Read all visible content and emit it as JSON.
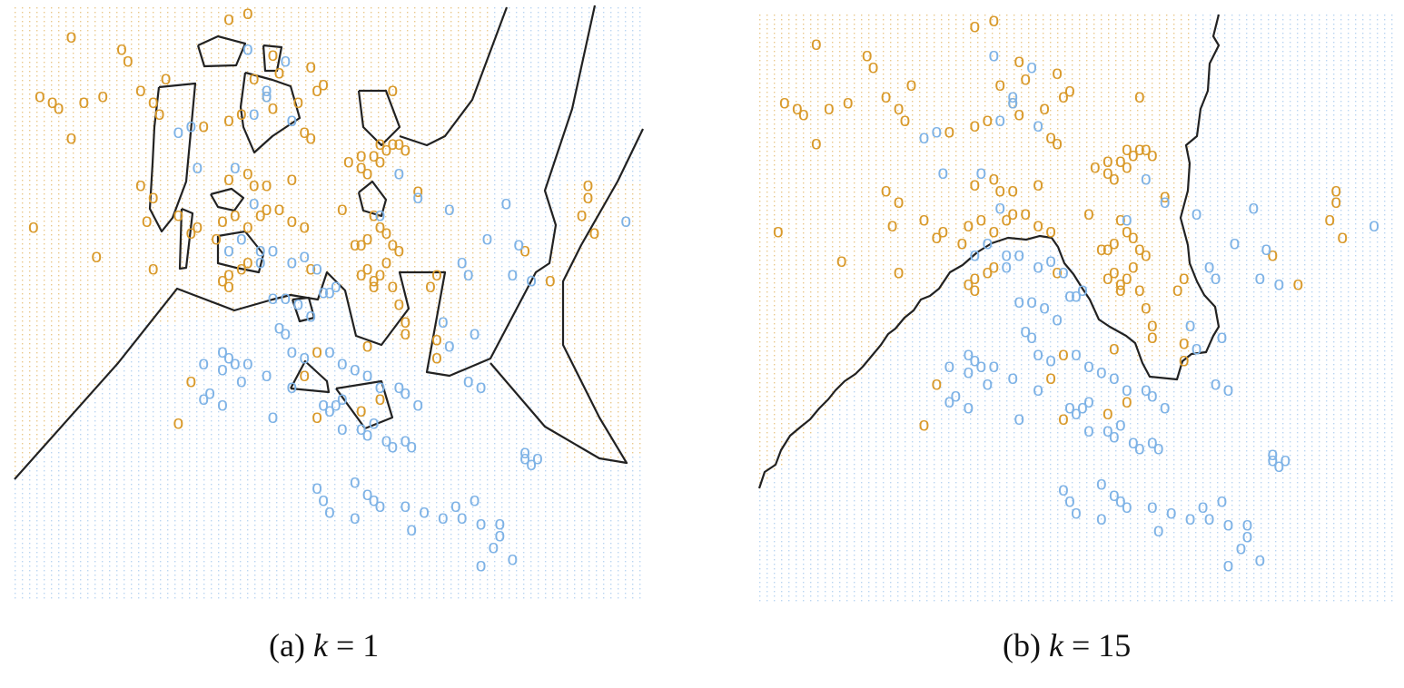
{
  "colors": {
    "orange": "#D99A2B",
    "blue": "#7FB3E6",
    "boundary": "#222222"
  },
  "captions": {
    "a": "(a) k = 1",
    "b": "(b) k = 15"
  },
  "chart_data": [
    {
      "type": "scatter",
      "title": "(a) k = 1",
      "xlim": [
        0,
        1
      ],
      "ylim": [
        0,
        1
      ],
      "grid": false,
      "caption_prefix": "(a) ",
      "caption_var": "k",
      "caption_eq": " = 1",
      "marker_label": "o",
      "series": [
        {
          "color": "#D99A2B",
          "x": [
            0.09,
            0.17,
            0.18,
            0.24,
            0.34,
            0.37,
            0.41,
            0.42,
            0.47,
            0.6,
            0.06,
            0.04,
            0.07,
            0.11,
            0.14,
            0.2,
            0.22,
            0.23,
            0.38,
            0.4,
            0.45,
            0.48,
            0.49,
            0.09,
            0.3,
            0.34,
            0.36,
            0.41,
            0.46,
            0.47,
            0.55,
            0.58,
            0.6,
            0.62,
            0.2,
            0.22,
            0.34,
            0.37,
            0.38,
            0.4,
            0.44,
            0.53,
            0.55,
            0.56,
            0.57,
            0.58,
            0.59,
            0.61,
            0.64,
            0.03,
            0.21,
            0.26,
            0.28,
            0.29,
            0.32,
            0.33,
            0.35,
            0.37,
            0.39,
            0.4,
            0.42,
            0.44,
            0.46,
            0.52,
            0.54,
            0.55,
            0.56,
            0.57,
            0.58,
            0.59,
            0.6,
            0.61,
            0.13,
            0.22,
            0.33,
            0.34,
            0.36,
            0.37,
            0.55,
            0.56,
            0.57,
            0.58,
            0.59,
            0.66,
            0.67,
            0.34,
            0.47,
            0.57,
            0.6,
            0.61,
            0.62,
            0.62,
            0.67,
            0.67,
            0.46,
            0.48,
            0.56,
            0.81,
            0.9,
            0.91,
            0.91,
            0.92,
            0.85,
            0.48,
            0.55,
            0.58,
            0.26,
            0.28
          ],
          "y": [
            0.95,
            0.93,
            0.91,
            0.88,
            0.98,
            0.99,
            0.92,
            0.89,
            0.9,
            0.86,
            0.84,
            0.85,
            0.83,
            0.84,
            0.85,
            0.86,
            0.84,
            0.82,
            0.88,
            0.85,
            0.84,
            0.86,
            0.87,
            0.78,
            0.8,
            0.81,
            0.82,
            0.83,
            0.79,
            0.78,
            0.75,
            0.77,
            0.77,
            0.76,
            0.7,
            0.68,
            0.71,
            0.72,
            0.7,
            0.7,
            0.71,
            0.74,
            0.73,
            0.72,
            0.75,
            0.74,
            0.76,
            0.77,
            0.69,
            0.63,
            0.64,
            0.65,
            0.62,
            0.63,
            0.61,
            0.64,
            0.65,
            0.63,
            0.65,
            0.66,
            0.66,
            0.64,
            0.63,
            0.66,
            0.6,
            0.6,
            0.61,
            0.65,
            0.63,
            0.62,
            0.6,
            0.59,
            0.58,
            0.56,
            0.54,
            0.55,
            0.56,
            0.57,
            0.55,
            0.56,
            0.54,
            0.55,
            0.57,
            0.53,
            0.55,
            0.53,
            0.56,
            0.53,
            0.53,
            0.5,
            0.47,
            0.45,
            0.41,
            0.44,
            0.38,
            0.42,
            0.43,
            0.59,
            0.65,
            0.68,
            0.7,
            0.62,
            0.54,
            0.31,
            0.32,
            0.34,
            0.3,
            0.37
          ]
        },
        {
          "color": "#7FB3E6",
          "x": [
            0.37,
            0.43,
            0.4,
            0.28,
            0.38,
            0.44,
            0.4,
            0.26,
            0.29,
            0.35,
            0.38,
            0.36,
            0.34,
            0.39,
            0.58,
            0.61,
            0.64,
            0.69,
            0.78,
            0.97,
            0.8,
            0.75,
            0.72,
            0.71,
            0.68,
            0.73,
            0.69,
            0.79,
            0.82,
            0.39,
            0.41,
            0.44,
            0.46,
            0.48,
            0.49,
            0.5,
            0.51,
            0.41,
            0.43,
            0.45,
            0.47,
            0.42,
            0.43,
            0.44,
            0.46,
            0.5,
            0.52,
            0.54,
            0.56,
            0.58,
            0.72,
            0.74,
            0.3,
            0.33,
            0.31,
            0.41,
            0.52,
            0.55,
            0.56,
            0.57,
            0.59,
            0.6,
            0.62,
            0.63,
            0.3,
            0.37,
            0.33,
            0.34,
            0.35,
            0.33,
            0.36,
            0.4,
            0.44,
            0.49,
            0.5,
            0.51,
            0.52,
            0.61,
            0.62,
            0.64,
            0.54,
            0.56,
            0.57,
            0.58,
            0.62,
            0.65,
            0.68,
            0.7,
            0.73,
            0.71,
            0.74,
            0.76,
            0.77,
            0.77,
            0.79,
            0.48,
            0.49,
            0.5,
            0.54,
            0.63,
            0.74,
            0.81,
            0.81,
            0.82,
            0.83
          ],
          "y": [
            0.93,
            0.91,
            0.85,
            0.8,
            0.82,
            0.81,
            0.86,
            0.79,
            0.73,
            0.73,
            0.67,
            0.61,
            0.59,
            0.57,
            0.65,
            0.72,
            0.68,
            0.66,
            0.67,
            0.64,
            0.6,
            0.61,
            0.55,
            0.57,
            0.47,
            0.45,
            0.43,
            0.55,
            0.54,
            0.59,
            0.59,
            0.57,
            0.58,
            0.56,
            0.52,
            0.52,
            0.53,
            0.51,
            0.51,
            0.5,
            0.48,
            0.46,
            0.45,
            0.42,
            0.41,
            0.42,
            0.4,
            0.39,
            0.38,
            0.36,
            0.37,
            0.36,
            0.34,
            0.33,
            0.35,
            0.31,
            0.29,
            0.29,
            0.28,
            0.3,
            0.27,
            0.26,
            0.27,
            0.26,
            0.4,
            0.4,
            0.42,
            0.41,
            0.4,
            0.39,
            0.37,
            0.38,
            0.36,
            0.33,
            0.32,
            0.33,
            0.34,
            0.36,
            0.35,
            0.33,
            0.2,
            0.18,
            0.17,
            0.16,
            0.16,
            0.15,
            0.14,
            0.16,
            0.17,
            0.14,
            0.13,
            0.09,
            0.11,
            0.13,
            0.07,
            0.19,
            0.17,
            0.15,
            0.14,
            0.12,
            0.06,
            0.24,
            0.25,
            0.23,
            0.24
          ]
        }
      ]
    },
    {
      "type": "scatter",
      "title": "(b) k = 15",
      "xlim": [
        0,
        1
      ],
      "ylim": [
        0,
        1
      ],
      "grid": false,
      "caption_prefix": "(b) ",
      "caption_var": "k",
      "caption_eq": " = 15",
      "marker_label": "o",
      "series": [
        {
          "color": "#D99A2B",
          "x": [
            0.09,
            0.17,
            0.18,
            0.24,
            0.34,
            0.37,
            0.41,
            0.42,
            0.47,
            0.6,
            0.06,
            0.04,
            0.07,
            0.11,
            0.14,
            0.2,
            0.22,
            0.23,
            0.38,
            0.4,
            0.45,
            0.48,
            0.49,
            0.09,
            0.3,
            0.34,
            0.36,
            0.41,
            0.46,
            0.47,
            0.55,
            0.58,
            0.6,
            0.62,
            0.2,
            0.22,
            0.34,
            0.37,
            0.38,
            0.4,
            0.44,
            0.53,
            0.55,
            0.56,
            0.57,
            0.58,
            0.59,
            0.61,
            0.64,
            0.03,
            0.21,
            0.26,
            0.28,
            0.29,
            0.32,
            0.33,
            0.35,
            0.37,
            0.39,
            0.4,
            0.42,
            0.44,
            0.46,
            0.52,
            0.54,
            0.55,
            0.56,
            0.57,
            0.58,
            0.59,
            0.6,
            0.61,
            0.13,
            0.22,
            0.33,
            0.34,
            0.36,
            0.37,
            0.55,
            0.56,
            0.57,
            0.58,
            0.59,
            0.66,
            0.67,
            0.34,
            0.47,
            0.57,
            0.6,
            0.61,
            0.62,
            0.62,
            0.67,
            0.67,
            0.46,
            0.48,
            0.56,
            0.81,
            0.9,
            0.91,
            0.91,
            0.92,
            0.85,
            0.48,
            0.55,
            0.58,
            0.26,
            0.28
          ],
          "y": [
            0.95,
            0.93,
            0.91,
            0.88,
            0.98,
            0.99,
            0.92,
            0.89,
            0.9,
            0.86,
            0.84,
            0.85,
            0.83,
            0.84,
            0.85,
            0.86,
            0.84,
            0.82,
            0.88,
            0.85,
            0.84,
            0.86,
            0.87,
            0.78,
            0.8,
            0.81,
            0.82,
            0.83,
            0.79,
            0.78,
            0.75,
            0.77,
            0.77,
            0.76,
            0.7,
            0.68,
            0.71,
            0.72,
            0.7,
            0.7,
            0.71,
            0.74,
            0.73,
            0.72,
            0.75,
            0.74,
            0.76,
            0.77,
            0.69,
            0.63,
            0.64,
            0.65,
            0.62,
            0.63,
            0.61,
            0.64,
            0.65,
            0.63,
            0.65,
            0.66,
            0.66,
            0.64,
            0.63,
            0.66,
            0.6,
            0.6,
            0.61,
            0.65,
            0.63,
            0.62,
            0.6,
            0.59,
            0.58,
            0.56,
            0.54,
            0.55,
            0.56,
            0.57,
            0.55,
            0.56,
            0.54,
            0.55,
            0.57,
            0.53,
            0.55,
            0.53,
            0.56,
            0.53,
            0.53,
            0.5,
            0.47,
            0.45,
            0.41,
            0.44,
            0.38,
            0.42,
            0.43,
            0.59,
            0.65,
            0.68,
            0.7,
            0.62,
            0.54,
            0.31,
            0.32,
            0.34,
            0.3,
            0.37
          ]
        },
        {
          "color": "#7FB3E6",
          "x": [
            0.37,
            0.43,
            0.4,
            0.28,
            0.38,
            0.44,
            0.4,
            0.26,
            0.29,
            0.35,
            0.38,
            0.36,
            0.34,
            0.39,
            0.58,
            0.61,
            0.64,
            0.69,
            0.78,
            0.97,
            0.8,
            0.75,
            0.72,
            0.71,
            0.68,
            0.73,
            0.69,
            0.79,
            0.82,
            0.39,
            0.41,
            0.44,
            0.46,
            0.48,
            0.49,
            0.5,
            0.51,
            0.41,
            0.43,
            0.45,
            0.47,
            0.42,
            0.43,
            0.44,
            0.46,
            0.5,
            0.52,
            0.54,
            0.56,
            0.58,
            0.72,
            0.74,
            0.3,
            0.33,
            0.31,
            0.41,
            0.52,
            0.55,
            0.56,
            0.57,
            0.59,
            0.6,
            0.62,
            0.63,
            0.3,
            0.37,
            0.33,
            0.34,
            0.35,
            0.33,
            0.36,
            0.4,
            0.44,
            0.49,
            0.5,
            0.51,
            0.52,
            0.61,
            0.62,
            0.64,
            0.54,
            0.56,
            0.57,
            0.58,
            0.62,
            0.65,
            0.68,
            0.7,
            0.73,
            0.71,
            0.74,
            0.76,
            0.77,
            0.77,
            0.79,
            0.48,
            0.49,
            0.5,
            0.54,
            0.63,
            0.74,
            0.81,
            0.81,
            0.82,
            0.83
          ],
          "y": [
            0.93,
            0.91,
            0.85,
            0.8,
            0.82,
            0.81,
            0.86,
            0.79,
            0.73,
            0.73,
            0.67,
            0.61,
            0.59,
            0.57,
            0.65,
            0.72,
            0.68,
            0.66,
            0.67,
            0.64,
            0.6,
            0.61,
            0.55,
            0.57,
            0.47,
            0.45,
            0.43,
            0.55,
            0.54,
            0.59,
            0.59,
            0.57,
            0.58,
            0.56,
            0.52,
            0.52,
            0.53,
            0.51,
            0.51,
            0.5,
            0.48,
            0.46,
            0.45,
            0.42,
            0.41,
            0.42,
            0.4,
            0.39,
            0.38,
            0.36,
            0.37,
            0.36,
            0.34,
            0.33,
            0.35,
            0.31,
            0.29,
            0.29,
            0.28,
            0.3,
            0.27,
            0.26,
            0.27,
            0.26,
            0.4,
            0.4,
            0.42,
            0.41,
            0.4,
            0.39,
            0.37,
            0.38,
            0.36,
            0.33,
            0.32,
            0.33,
            0.34,
            0.36,
            0.35,
            0.33,
            0.2,
            0.18,
            0.17,
            0.16,
            0.16,
            0.15,
            0.14,
            0.16,
            0.17,
            0.14,
            0.13,
            0.09,
            0.11,
            0.13,
            0.07,
            0.19,
            0.17,
            0.15,
            0.14,
            0.12,
            0.06,
            0.24,
            0.25,
            0.23,
            0.24
          ]
        }
      ]
    }
  ]
}
